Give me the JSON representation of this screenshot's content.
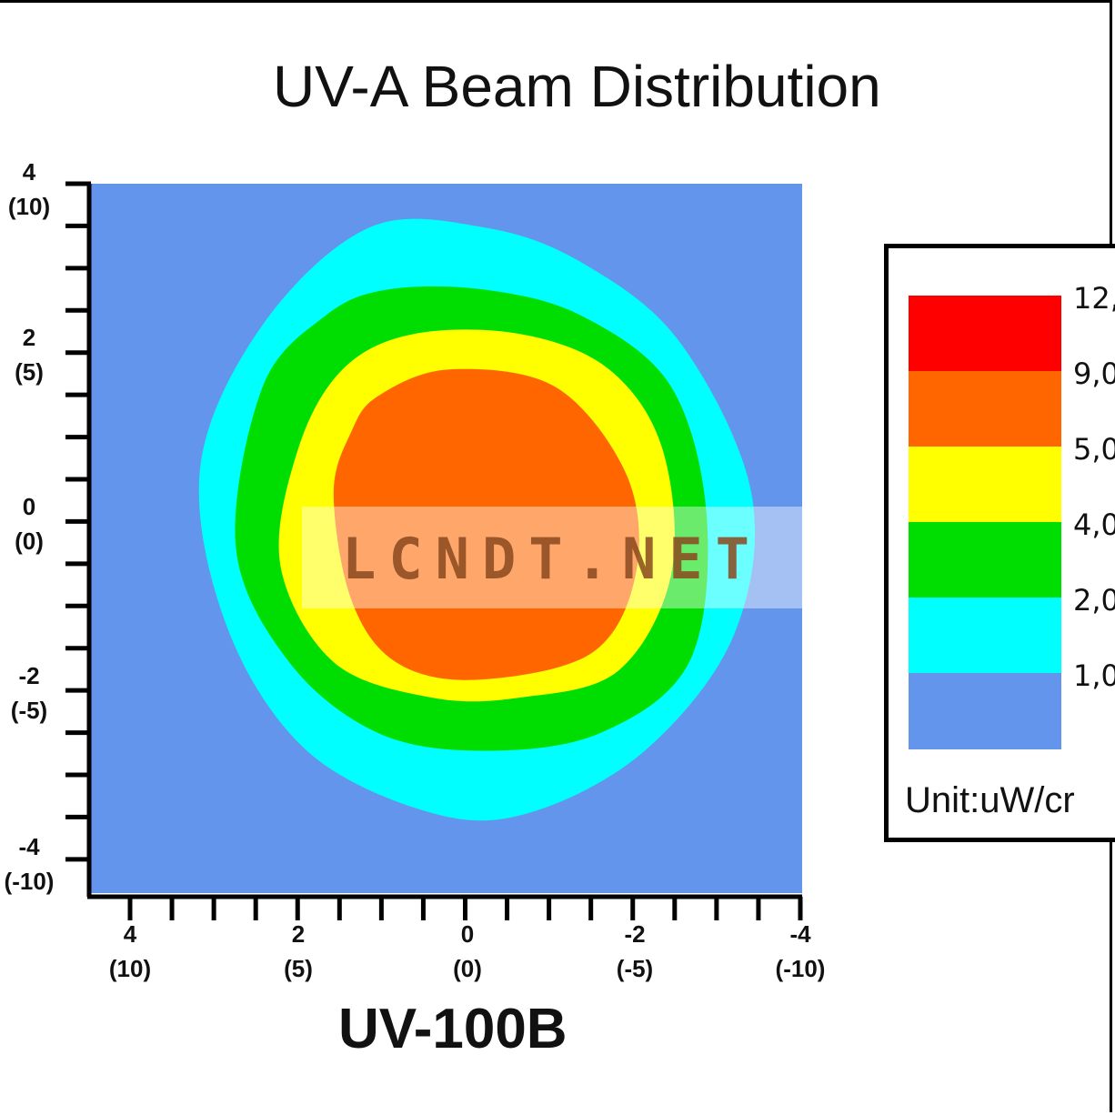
{
  "chart_data": {
    "type": "heatmap",
    "title": "UV-A Beam Distribution",
    "subtitle": "UV-100B",
    "xlim": [
      4,
      -4
    ],
    "ylim": [
      -4,
      4
    ],
    "x_ticks": [
      {
        "value": 4,
        "label": "4",
        "sublabel": "(10)"
      },
      {
        "value": 2,
        "label": "2",
        "sublabel": "(5)"
      },
      {
        "value": 0,
        "label": "0",
        "sublabel": "(0)"
      },
      {
        "value": -2,
        "label": "-2",
        "sublabel": "(-5)"
      },
      {
        "value": -4,
        "label": "-4",
        "sublabel": "(-10)"
      }
    ],
    "y_ticks": [
      {
        "value": 4,
        "label": "4",
        "sublabel": "(10)"
      },
      {
        "value": 2,
        "label": "2",
        "sublabel": "(5)"
      },
      {
        "value": 0,
        "label": "0",
        "sublabel": "(0)"
      },
      {
        "value": -2,
        "label": "-2",
        "sublabel": "(-5)"
      },
      {
        "value": -4,
        "label": "-4",
        "sublabel": "(-10)"
      }
    ],
    "background_color": "#6495ED",
    "contours": [
      {
        "level": "1,0",
        "color": "#00FFFF",
        "points": [
          [
            1.3,
            3.3
          ],
          [
            0,
            3.3
          ],
          [
            -1.1,
            2.9
          ],
          [
            -2.2,
            2.0
          ],
          [
            -3.0,
            0.3
          ],
          [
            -2.8,
            -1.3
          ],
          [
            -1.8,
            -2.6
          ],
          [
            -0.5,
            -3.3
          ],
          [
            0.6,
            -3.3
          ],
          [
            2.0,
            -2.6
          ],
          [
            2.9,
            -1.2
          ],
          [
            3.2,
            0.6
          ],
          [
            2.5,
            2.2
          ]
        ]
      },
      {
        "level": "2,0",
        "color": "#00DD00",
        "points": [
          [
            1.1,
            2.6
          ],
          [
            0,
            2.6
          ],
          [
            -1.1,
            2.3
          ],
          [
            -2.1,
            1.5
          ],
          [
            -2.5,
            0
          ],
          [
            -2.3,
            -1.6
          ],
          [
            -1.3,
            -2.4
          ],
          [
            0,
            -2.6
          ],
          [
            1.2,
            -2.4
          ],
          [
            2.2,
            -1.6
          ],
          [
            2.8,
            -0.3
          ],
          [
            2.5,
            1.5
          ],
          [
            1.8,
            2.3
          ]
        ]
      },
      {
        "level": "4,0",
        "color": "#FFFF00",
        "points": [
          [
            0.8,
            2.1
          ],
          [
            -0.4,
            2.1
          ],
          [
            -1.4,
            1.7
          ],
          [
            -2.0,
            0.8
          ],
          [
            -2.1,
            -0.6
          ],
          [
            -1.5,
            -1.7
          ],
          [
            -0.4,
            -2.0
          ],
          [
            0.6,
            -2.0
          ],
          [
            1.7,
            -1.6
          ],
          [
            2.3,
            -0.5
          ],
          [
            2.1,
            0.8
          ],
          [
            1.6,
            1.7
          ]
        ]
      },
      {
        "level": "5,0",
        "color": "#FF6600",
        "points": [
          [
            0.4,
            1.7
          ],
          [
            -0.8,
            1.5
          ],
          [
            -1.6,
            0.5
          ],
          [
            -1.7,
            -0.6
          ],
          [
            -1.2,
            -1.5
          ],
          [
            0.1,
            -1.8
          ],
          [
            1.0,
            -1.6
          ],
          [
            1.5,
            -0.9
          ],
          [
            1.7,
            0.3
          ],
          [
            1.5,
            1.0
          ],
          [
            1.2,
            1.4
          ]
        ]
      }
    ],
    "legend": {
      "entries": [
        {
          "label": "12,",
          "color": "#FF0000"
        },
        {
          "label": "9,0",
          "color": "#FF6600"
        },
        {
          "label": "5,0",
          "color": "#FFFF00"
        },
        {
          "label": "4,0",
          "color": "#00DD00"
        },
        {
          "label": "2,0",
          "color": "#00FFFF"
        },
        {
          "label": "1,0",
          "color": "#6495ED"
        }
      ],
      "unit": "Unit:uW/cr"
    },
    "watermark": "LCNDT.NET"
  }
}
